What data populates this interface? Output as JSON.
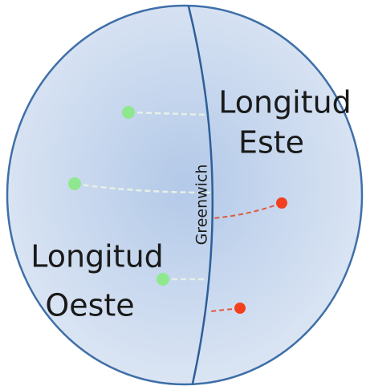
{
  "meridian": {
    "label": "Greenwich"
  },
  "regions": [
    {
      "lines": [
        "Longitud",
        "Este"
      ]
    },
    {
      "lines": [
        "Longitud",
        "Oeste"
      ]
    }
  ]
}
